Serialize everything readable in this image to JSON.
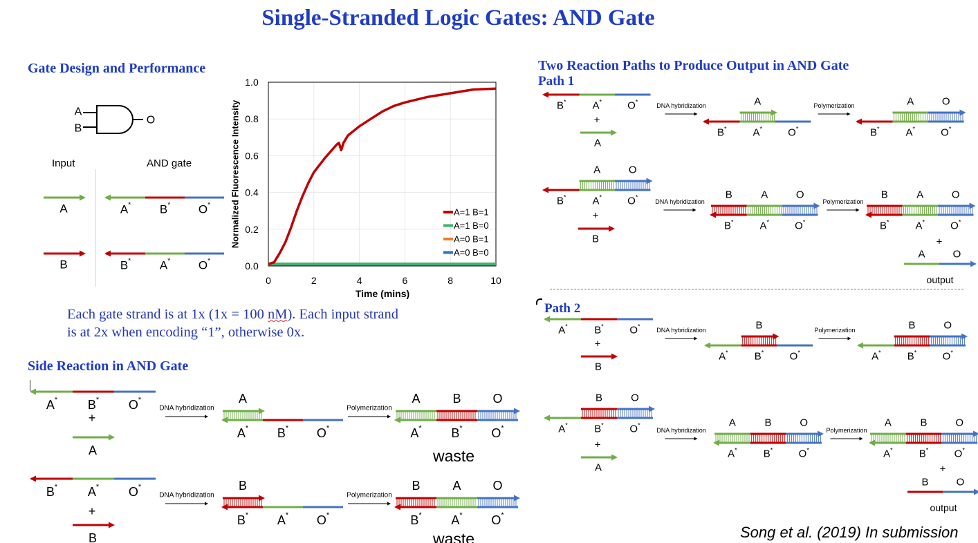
{
  "title": "Single-Stranded Logic Gates: AND Gate",
  "colors": {
    "A": "#70ad47",
    "B": "#c00000",
    "O": "#4472c4",
    "heading": "#1f3cc4"
  },
  "gate_design": {
    "heading": "Gate Design and Performance",
    "symbol": {
      "inputs": [
        "A",
        "B"
      ],
      "output": "O"
    },
    "input_header": "Input",
    "gate_header": "AND gate",
    "strands": [
      {
        "top": [
          "A"
        ]
      },
      {
        "bottom": [
          "A*",
          "B*",
          "O*"
        ]
      },
      {
        "top": [
          "B"
        ]
      },
      {
        "bottom": [
          "B*",
          "A*",
          "O*"
        ]
      }
    ]
  },
  "note": {
    "line1_pre": "Each gate strand is at 1x (1x = 100 ",
    "line1_spell": "nM",
    "line1_post": "). Each input strand",
    "line2": "is at 2x when encoding “1”, otherwise 0x."
  },
  "side_reaction": {
    "heading": "Side Reaction in AND Gate",
    "strands": [
      {
        "bottom": [
          "A*",
          "B*",
          "O*"
        ]
      },
      {
        "top": [
          "A"
        ]
      },
      {
        "bottom": [
          "A*",
          "B*",
          "O*"
        ],
        "top": [
          "A",
          null,
          null
        ]
      },
      {
        "bottom": [
          "A*",
          "B*",
          "O*"
        ],
        "top": [
          "A",
          "B",
          "O"
        ]
      },
      {
        "bottom": [
          "B*",
          "A*",
          "O*"
        ]
      },
      {
        "top": [
          "B"
        ]
      },
      {
        "bottom": [
          "B*",
          "A*",
          "O*"
        ],
        "top": [
          "B",
          null,
          null
        ]
      },
      {
        "bottom": [
          "B*",
          "A*",
          "O*"
        ],
        "top": [
          "B",
          "A",
          "O"
        ]
      }
    ],
    "result_label": "waste"
  },
  "reaction_paths": {
    "heading": "Two Reaction Paths to Produce Output in AND Gate",
    "path1": {
      "label": "Path 1",
      "strands": [
        {
          "bottom": [
            "B*",
            "A*",
            "O*"
          ]
        },
        {
          "top": [
            "A"
          ]
        },
        {
          "bottom": [
            "B*",
            "A*",
            "O*"
          ],
          "top": [
            null,
            "A",
            null
          ]
        },
        {
          "bottom": [
            "B*",
            "A*",
            "O*"
          ],
          "top": [
            null,
            "A",
            "O"
          ]
        },
        {
          "bottom": [
            "B*",
            "A*",
            "O*"
          ],
          "top": [
            null,
            "A",
            "O"
          ]
        },
        {
          "top": [
            "B"
          ]
        },
        {
          "bottom": [
            "B*",
            "A*",
            "O*"
          ],
          "top": [
            "B",
            "A",
            "O"
          ]
        },
        {
          "bottom": [
            "B*",
            "A*",
            "O*"
          ],
          "top": [
            "B",
            "A",
            "O"
          ]
        },
        {
          "top": [
            "A",
            "O"
          ]
        }
      ]
    },
    "path2": {
      "label": "Path 2",
      "strands": [
        {
          "bottom": [
            "A*",
            "B*",
            "O*"
          ]
        },
        {
          "top": [
            "B"
          ]
        },
        {
          "bottom": [
            "A*",
            "B*",
            "O*"
          ],
          "top": [
            null,
            "B",
            null
          ]
        },
        {
          "bottom": [
            "A*",
            "B*",
            "O*"
          ],
          "top": [
            null,
            "B",
            "O"
          ]
        },
        {
          "bottom": [
            "A*",
            "B*",
            "O*"
          ],
          "top": [
            null,
            "B",
            "O"
          ]
        },
        {
          "top": [
            "A"
          ]
        },
        {
          "bottom": [
            "A*",
            "B*",
            "O*"
          ],
          "top": [
            "A",
            "B",
            "O"
          ]
        },
        {
          "bottom": [
            "A*",
            "B*",
            "O*"
          ],
          "top": [
            "A",
            "B",
            "O"
          ]
        },
        {
          "top": [
            "B",
            "O"
          ]
        }
      ]
    },
    "output_label": "output"
  },
  "plus": "+",
  "steps": {
    "hybridization": "DNA hybridization",
    "polymerization": "Polymerization"
  },
  "citation": "Song et al. (2019) In submission",
  "chart_data": {
    "type": "line",
    "xlabel": "Time (mins)",
    "ylabel": "Normalized Fluorescence Intensity",
    "xlim": [
      0,
      10
    ],
    "ylim": [
      0,
      1.0
    ],
    "xticks": [
      0,
      2,
      4,
      6,
      8,
      10
    ],
    "yticks": [
      "0.0",
      "0.2",
      "0.4",
      "0.6",
      "0.8",
      "1.0"
    ],
    "grid": true,
    "legend_position": "bottom-right",
    "x": [
      0,
      0.25,
      0.5,
      0.75,
      1,
      1.25,
      1.5,
      1.75,
      2,
      2.5,
      3,
      3.1,
      3.2,
      3.3,
      3.5,
      4,
      4.5,
      5,
      5.5,
      6,
      7,
      8,
      9,
      10
    ],
    "series": [
      {
        "name": "A=1 B=1",
        "color": "#c00000",
        "values": [
          0.01,
          0.02,
          0.07,
          0.13,
          0.21,
          0.3,
          0.38,
          0.45,
          0.51,
          0.59,
          0.66,
          0.67,
          0.63,
          0.67,
          0.71,
          0.76,
          0.8,
          0.84,
          0.87,
          0.89,
          0.92,
          0.94,
          0.96,
          0.965
        ]
      },
      {
        "name": "A=1 B=0",
        "color": "#3cb371",
        "values": [
          0.01,
          0.01,
          0.01,
          0.01,
          0.01,
          0.01,
          0.01,
          0.01,
          0.01,
          0.01,
          0.01,
          0.01,
          0.01,
          0.01,
          0.01,
          0.01,
          0.01,
          0.01,
          0.01,
          0.01,
          0.01,
          0.01,
          0.01,
          0.01
        ]
      },
      {
        "name": "A=0 B=1",
        "color": "#ed7d31",
        "values": [
          0.01,
          0.01,
          0.01,
          0.01,
          0.01,
          0.01,
          0.01,
          0.01,
          0.01,
          0.01,
          0.01,
          0.01,
          0.01,
          0.01,
          0.01,
          0.01,
          0.01,
          0.01,
          0.01,
          0.01,
          0.01,
          0.01,
          0.01,
          0.01
        ]
      },
      {
        "name": "A=0 B=0",
        "color": "#2e75b6",
        "values": [
          0.01,
          0.01,
          0.01,
          0.01,
          0.01,
          0.01,
          0.01,
          0.01,
          0.01,
          0.01,
          0.01,
          0.01,
          0.01,
          0.01,
          0.01,
          0.01,
          0.01,
          0.01,
          0.01,
          0.01,
          0.01,
          0.01,
          0.01,
          0.01
        ]
      }
    ]
  }
}
